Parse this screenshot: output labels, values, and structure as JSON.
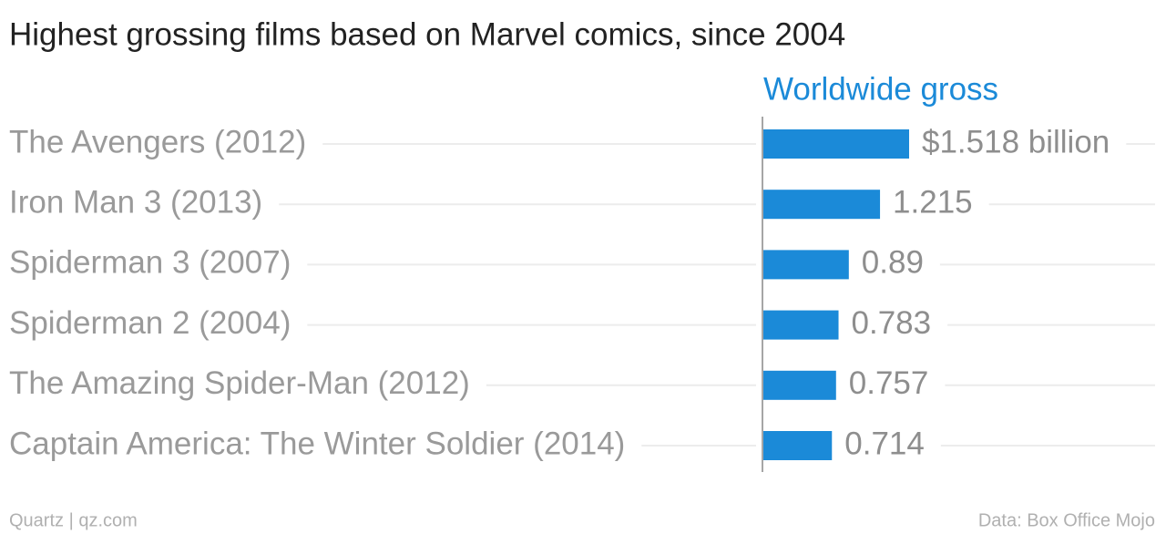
{
  "chart_data": {
    "type": "bar",
    "orientation": "horizontal",
    "title": "Highest grossing films based on Marvel comics, since 2004",
    "series_label": "Worldwide gross",
    "categories": [
      "The Avengers (2012)",
      "Iron Man 3 (2013)",
      "Spiderman 3 (2007)",
      "Spiderman 2 (2004)",
      "The Amazing Spider-Man (2012)",
      "Captain America: The Winter Soldier (2014)"
    ],
    "values": [
      1.518,
      1.215,
      0.89,
      0.783,
      0.757,
      0.714
    ],
    "value_labels": [
      "$1.518 billion",
      "1.215",
      "0.89",
      "0.783",
      "0.757",
      "0.714"
    ],
    "color": "#1b8ad8",
    "source": "Data: Box Office Mojo",
    "credit": "Quartz | qz.com"
  }
}
